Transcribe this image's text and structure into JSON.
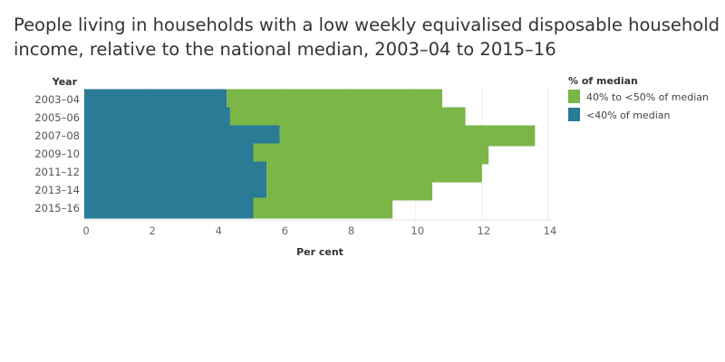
{
  "chart_data": {
    "type": "bar",
    "orientation": "horizontal",
    "stacked": true,
    "title": "People living in households with a low weekly equivalised disposable household income, relative to the national median, 2003–04 to 2015–16",
    "xlabel": "Per cent",
    "ylabel": "Year",
    "xlim": [
      0,
      14
    ],
    "xticks": [
      0,
      2,
      4,
      6,
      8,
      10,
      12,
      14
    ],
    "grid": true,
    "legend_title": "% of median",
    "legend_position": "top-right",
    "categories": [
      "2003–04",
      "2005–06",
      "2007–08",
      "2009–10",
      "2011–12",
      "2013–14",
      "2015–16"
    ],
    "series": [
      {
        "name": "<40% of median",
        "color": "#2a7b96",
        "values": [
          4.3,
          4.4,
          5.9,
          5.1,
          5.5,
          5.5,
          5.1
        ]
      },
      {
        "name": "40% to <50% of median",
        "color": "#7ab648",
        "values": [
          6.5,
          7.1,
          7.7,
          7.1,
          6.5,
          5.0,
          4.2
        ]
      }
    ],
    "legend_order": [
      1,
      0
    ]
  }
}
